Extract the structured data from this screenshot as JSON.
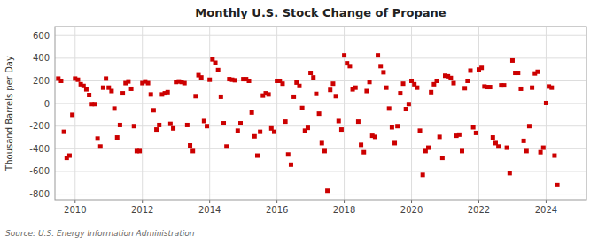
{
  "chart_data": {
    "type": "scatter",
    "title": "Monthly U.S. Stock Change of Propane",
    "ylabel": "Thousand Barrels per Day",
    "annotations": [
      "Source: U.S. Energy Information Administration"
    ],
    "color": "#cc0000",
    "marker": "square",
    "grid": true,
    "xlim": [
      2009.4,
      2025.2
    ],
    "xticks": [
      2010,
      2012,
      2014,
      2016,
      2018,
      2020,
      2022,
      2024
    ],
    "ylim": [
      -850,
      680
    ],
    "yticks": [
      -800,
      -600,
      -400,
      -200,
      0,
      200,
      400,
      600
    ],
    "x": [
      2009.5,
      2009.583,
      2009.667,
      2009.75,
      2009.833,
      2009.917,
      2010.0,
      2010.083,
      2010.167,
      2010.25,
      2010.333,
      2010.417,
      2010.5,
      2010.583,
      2010.667,
      2010.75,
      2010.833,
      2010.917,
      2011.0,
      2011.083,
      2011.167,
      2011.25,
      2011.333,
      2011.417,
      2011.5,
      2011.583,
      2011.667,
      2011.75,
      2011.833,
      2011.917,
      2012.0,
      2012.083,
      2012.167,
      2012.25,
      2012.333,
      2012.417,
      2012.5,
      2012.583,
      2012.667,
      2012.75,
      2012.833,
      2012.917,
      2013.0,
      2013.083,
      2013.167,
      2013.25,
      2013.333,
      2013.417,
      2013.5,
      2013.583,
      2013.667,
      2013.75,
      2013.833,
      2013.917,
      2014.0,
      2014.083,
      2014.167,
      2014.25,
      2014.333,
      2014.417,
      2014.5,
      2014.583,
      2014.667,
      2014.75,
      2014.833,
      2014.917,
      2015.0,
      2015.083,
      2015.167,
      2015.25,
      2015.333,
      2015.417,
      2015.5,
      2015.583,
      2015.667,
      2015.75,
      2015.833,
      2015.917,
      2016.0,
      2016.083,
      2016.167,
      2016.25,
      2016.333,
      2016.417,
      2016.5,
      2016.583,
      2016.667,
      2016.75,
      2016.833,
      2016.917,
      2017.0,
      2017.083,
      2017.167,
      2017.25,
      2017.333,
      2017.417,
      2017.5,
      2017.583,
      2017.667,
      2017.75,
      2017.833,
      2017.917,
      2018.0,
      2018.083,
      2018.167,
      2018.25,
      2018.333,
      2018.417,
      2018.5,
      2018.583,
      2018.667,
      2018.75,
      2018.833,
      2018.917,
      2019.0,
      2019.083,
      2019.167,
      2019.25,
      2019.333,
      2019.417,
      2019.5,
      2019.583,
      2019.667,
      2019.75,
      2019.833,
      2019.917,
      2020.0,
      2020.083,
      2020.167,
      2020.25,
      2020.333,
      2020.417,
      2020.5,
      2020.583,
      2020.667,
      2020.75,
      2020.833,
      2020.917,
      2021.0,
      2021.083,
      2021.167,
      2021.25,
      2021.333,
      2021.417,
      2021.5,
      2021.583,
      2021.667,
      2021.75,
      2021.833,
      2021.917,
      2022.0,
      2022.083,
      2022.167,
      2022.25,
      2022.333,
      2022.417,
      2022.5,
      2022.583,
      2022.667,
      2022.75,
      2022.833,
      2022.917,
      2023.0,
      2023.083,
      2023.167,
      2023.25,
      2023.333,
      2023.417,
      2023.5,
      2023.583,
      2023.667,
      2023.75,
      2023.833,
      2023.917,
      2024.0,
      2024.083,
      2024.167,
      2024.25,
      2024.333
    ],
    "values": [
      220,
      200,
      -250,
      -480,
      -460,
      -100,
      220,
      210,
      170,
      155,
      125,
      75,
      -5,
      -5,
      -310,
      -380,
      140,
      220,
      140,
      110,
      -45,
      -300,
      -190,
      90,
      180,
      195,
      130,
      -200,
      -420,
      -420,
      180,
      195,
      180,
      80,
      -60,
      -230,
      -190,
      80,
      90,
      100,
      -180,
      -220,
      190,
      195,
      190,
      180,
      -190,
      -370,
      -420,
      65,
      250,
      230,
      -155,
      -200,
      210,
      390,
      360,
      295,
      60,
      -175,
      -380,
      215,
      210,
      205,
      -240,
      -175,
      215,
      215,
      200,
      -80,
      -290,
      -460,
      -250,
      70,
      90,
      80,
      -220,
      -250,
      200,
      200,
      175,
      -160,
      -450,
      -540,
      60,
      185,
      155,
      -40,
      -240,
      -215,
      270,
      230,
      85,
      -90,
      -350,
      -420,
      -770,
      120,
      175,
      65,
      -155,
      -230,
      425,
      355,
      330,
      125,
      140,
      -160,
      -365,
      -430,
      110,
      190,
      -285,
      -295,
      425,
      330,
      275,
      140,
      -45,
      -210,
      -350,
      -200,
      90,
      175,
      -50,
      -5,
      200,
      170,
      140,
      -240,
      -630,
      -420,
      -390,
      100,
      170,
      200,
      -295,
      -480,
      245,
      240,
      225,
      180,
      -285,
      -275,
      -420,
      135,
      200,
      290,
      -210,
      -260,
      300,
      315,
      150,
      145,
      145,
      -300,
      -350,
      -380,
      160,
      160,
      -390,
      -615,
      380,
      270,
      270,
      130,
      -330,
      -420,
      -200,
      140,
      265,
      280,
      -430,
      -390,
      5,
      150,
      140,
      -460,
      -720
    ]
  }
}
